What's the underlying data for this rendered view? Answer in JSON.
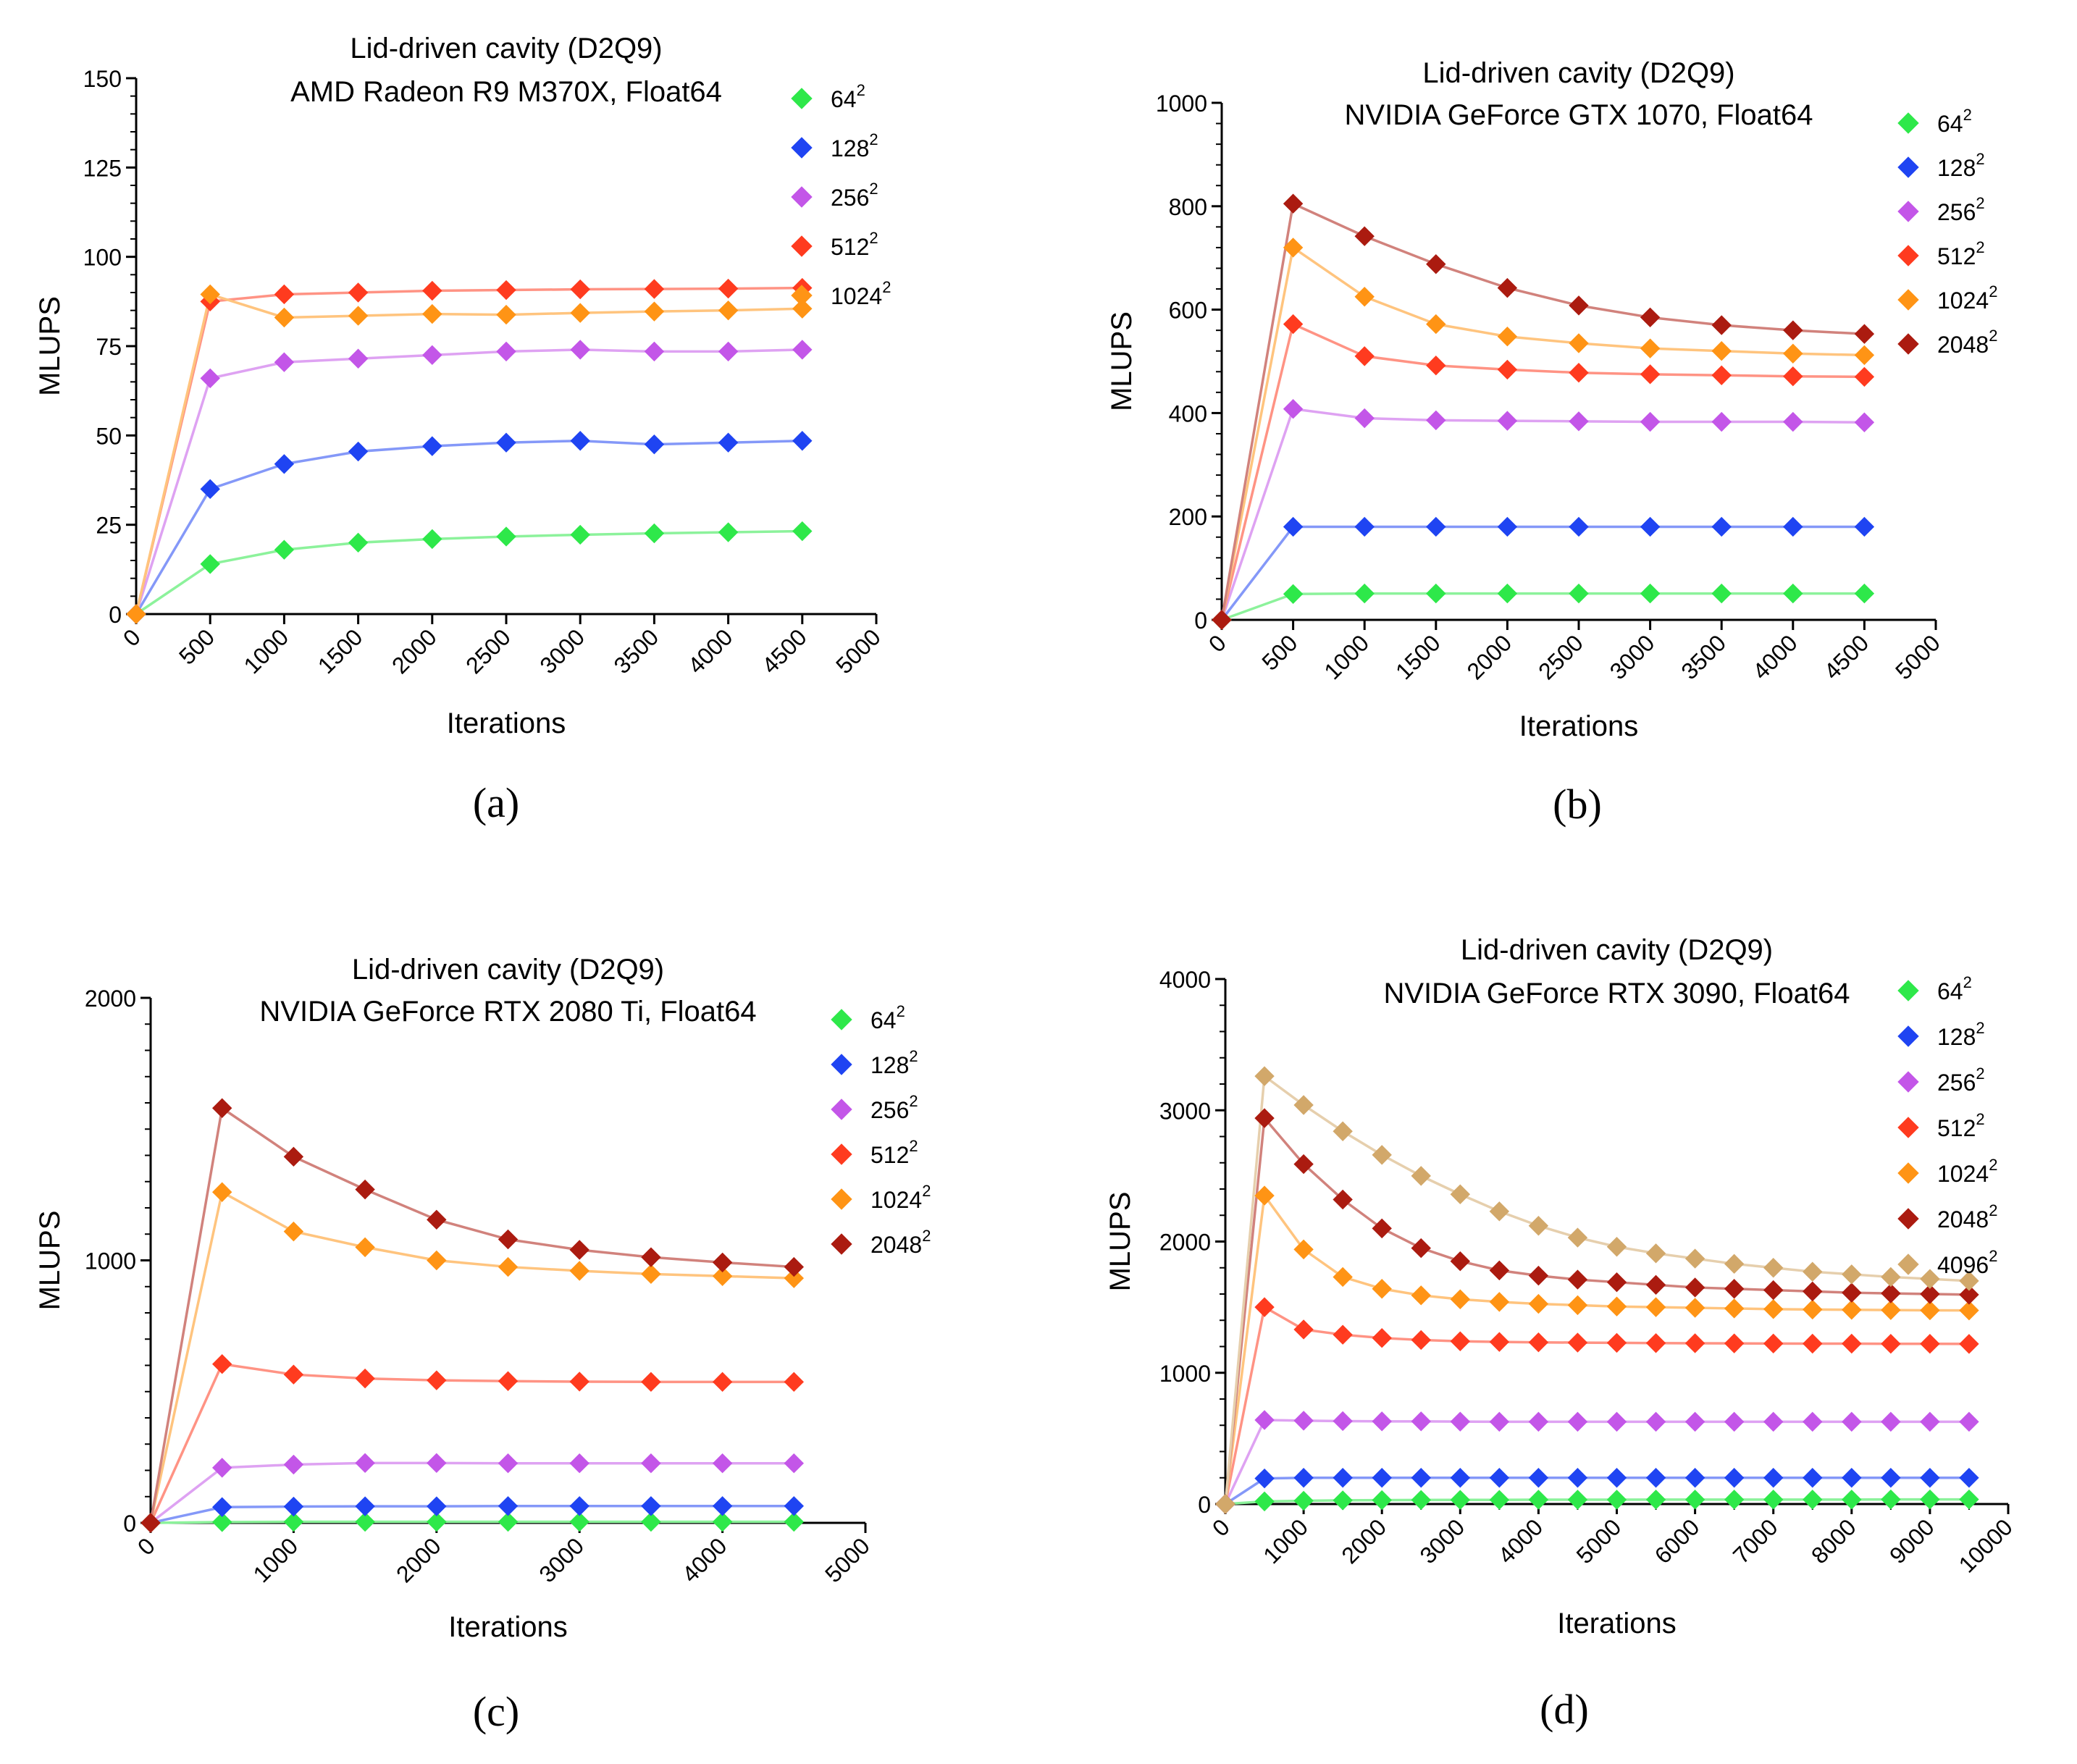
{
  "chart_data": [
    {
      "type": "line",
      "caption": "(a)",
      "title": "Lid-driven cavity (D2Q9)",
      "subtitle": "AMD Radeon R9 M370X, Float64",
      "xlabel": "Iterations",
      "ylabel": "MLUPS",
      "xlim": [
        0,
        5000
      ],
      "ylim": [
        0,
        150
      ],
      "xticks": [
        0,
        500,
        1000,
        1500,
        2000,
        2500,
        3000,
        3500,
        4000,
        4500,
        5000
      ],
      "yticks": [
        0,
        25,
        50,
        75,
        100,
        125,
        150
      ],
      "grid": false,
      "legend_position": "top-right",
      "x": [
        0,
        500,
        1000,
        1500,
        2000,
        2500,
        3000,
        3500,
        4000,
        4500
      ],
      "series": [
        {
          "name": "64",
          "sup": "2",
          "color": "#2ee84a",
          "values": [
            0,
            14,
            18,
            20,
            21,
            21.7,
            22.2,
            22.6,
            22.9,
            23.2
          ]
        },
        {
          "name": "128",
          "sup": "2",
          "color": "#1f44f2",
          "values": [
            0,
            35,
            42,
            45.5,
            47,
            48,
            48.5,
            47.5,
            48,
            48.5
          ]
        },
        {
          "name": "256",
          "sup": "2",
          "color": "#c356e8",
          "values": [
            0,
            66,
            70.5,
            71.5,
            72.5,
            73.5,
            74,
            73.5,
            73.5,
            74
          ]
        },
        {
          "name": "512",
          "sup": "2",
          "color": "#ff3b1f",
          "values": [
            0,
            87.5,
            89.5,
            90,
            90.5,
            90.7,
            90.9,
            91,
            91.1,
            91.3
          ]
        },
        {
          "name": "1024",
          "sup": "2",
          "color": "#ff9415",
          "values": [
            0,
            89.5,
            83,
            83.5,
            84,
            83.8,
            84.3,
            84.7,
            85,
            85.5
          ]
        }
      ]
    },
    {
      "type": "line",
      "caption": "(b)",
      "title": "Lid-driven cavity (D2Q9)",
      "subtitle": "NVIDIA GeForce GTX 1070, Float64",
      "xlabel": "Iterations",
      "ylabel": "MLUPS",
      "xlim": [
        0,
        5000
      ],
      "ylim": [
        0,
        1000
      ],
      "xticks": [
        0,
        500,
        1000,
        1500,
        2000,
        2500,
        3000,
        3500,
        4000,
        4500,
        5000
      ],
      "yticks": [
        0,
        200,
        400,
        600,
        800,
        1000
      ],
      "grid": false,
      "legend_position": "right",
      "x": [
        0,
        500,
        1000,
        1500,
        2000,
        2500,
        3000,
        3500,
        4000,
        4500
      ],
      "series": [
        {
          "name": "64",
          "sup": "2",
          "color": "#2ee84a",
          "values": [
            0,
            50,
            51,
            51,
            51,
            51,
            51,
            51,
            51,
            51
          ]
        },
        {
          "name": "128",
          "sup": "2",
          "color": "#1f44f2",
          "values": [
            0,
            180,
            180,
            180,
            180,
            180,
            180,
            180,
            180,
            180
          ]
        },
        {
          "name": "256",
          "sup": "2",
          "color": "#c356e8",
          "values": [
            0,
            408,
            390,
            386,
            385,
            384,
            383,
            383,
            383,
            382
          ]
        },
        {
          "name": "512",
          "sup": "2",
          "color": "#ff3b1f",
          "values": [
            0,
            572,
            510,
            492,
            484,
            478,
            475,
            473,
            471,
            470
          ]
        },
        {
          "name": "1024",
          "sup": "2",
          "color": "#ff9415",
          "values": [
            0,
            720,
            625,
            572,
            548,
            535,
            525,
            520,
            515,
            512
          ]
        },
        {
          "name": "2048",
          "sup": "2",
          "color": "#ab1b10",
          "values": [
            0,
            805,
            742,
            688,
            642,
            608,
            585,
            570,
            560,
            553
          ]
        }
      ]
    },
    {
      "type": "line",
      "caption": "(c)",
      "title": "Lid-driven cavity (D2Q9)",
      "subtitle": "NVIDIA GeForce RTX 2080 Ti, Float64",
      "xlabel": "Iterations",
      "ylabel": "MLUPS",
      "xlim": [
        0,
        5000
      ],
      "ylim": [
        0,
        2000
      ],
      "xticks": [
        0,
        1000,
        2000,
        3000,
        4000,
        5000
      ],
      "yticks": [
        0,
        1000,
        2000
      ],
      "grid": false,
      "legend_position": "right",
      "x": [
        0,
        500,
        1000,
        1500,
        2000,
        2500,
        3000,
        3500,
        4000,
        4500
      ],
      "series": [
        {
          "name": "64",
          "sup": "2",
          "color": "#2ee84a",
          "values": [
            0,
            3,
            4,
            4,
            4,
            4,
            4,
            4,
            4,
            4
          ]
        },
        {
          "name": "128",
          "sup": "2",
          "color": "#1f44f2",
          "values": [
            0,
            60,
            62,
            63,
            63,
            64,
            64,
            64,
            64,
            64
          ]
        },
        {
          "name": "256",
          "sup": "2",
          "color": "#c356e8",
          "values": [
            0,
            210,
            222,
            228,
            228,
            227,
            227,
            227,
            227,
            227
          ]
        },
        {
          "name": "512",
          "sup": "2",
          "color": "#ff3b1f",
          "values": [
            0,
            605,
            565,
            550,
            543,
            540,
            538,
            537,
            537,
            537
          ]
        },
        {
          "name": "1024",
          "sup": "2",
          "color": "#ff9415",
          "values": [
            0,
            1260,
            1110,
            1050,
            1000,
            975,
            960,
            948,
            940,
            932
          ]
        },
        {
          "name": "2048",
          "sup": "2",
          "color": "#ab1b10",
          "values": [
            0,
            1580,
            1395,
            1270,
            1155,
            1080,
            1040,
            1012,
            992,
            975
          ]
        }
      ]
    },
    {
      "type": "line",
      "caption": "(d)",
      "title": "Lid-driven cavity (D2Q9)",
      "subtitle": "NVIDIA GeForce RTX 3090, Float64",
      "xlabel": "Iterations",
      "ylabel": "MLUPS",
      "xlim": [
        0,
        10000
      ],
      "ylim": [
        0,
        4000
      ],
      "xticks": [
        0,
        1000,
        2000,
        3000,
        4000,
        5000,
        6000,
        7000,
        8000,
        9000,
        10000
      ],
      "yticks": [
        0,
        1000,
        2000,
        3000,
        4000
      ],
      "grid": false,
      "legend_position": "right",
      "x": [
        0,
        500,
        1000,
        1500,
        2000,
        2500,
        3000,
        3500,
        4000,
        4500,
        5000,
        5500,
        6000,
        6500,
        7000,
        7500,
        8000,
        8500,
        9000,
        9500
      ],
      "series": [
        {
          "name": "64",
          "sup": "2",
          "color": "#2ee84a",
          "values": [
            0,
            20,
            25,
            28,
            30,
            31,
            32,
            32,
            33,
            33,
            33,
            34,
            34,
            34,
            34,
            34,
            34,
            35,
            35,
            35
          ]
        },
        {
          "name": "128",
          "sup": "2",
          "color": "#1f44f2",
          "values": [
            0,
            195,
            200,
            200,
            200,
            200,
            200,
            200,
            200,
            200,
            200,
            200,
            200,
            200,
            200,
            200,
            200,
            200,
            200,
            200
          ]
        },
        {
          "name": "256",
          "sup": "2",
          "color": "#c356e8",
          "values": [
            0,
            640,
            635,
            632,
            630,
            630,
            628,
            627,
            627,
            627,
            627,
            627,
            627,
            627,
            627,
            627,
            627,
            627,
            627,
            627
          ]
        },
        {
          "name": "512",
          "sup": "2",
          "color": "#ff3b1f",
          "values": [
            0,
            1500,
            1330,
            1290,
            1265,
            1250,
            1240,
            1235,
            1232,
            1230,
            1228,
            1226,
            1225,
            1224,
            1223,
            1222,
            1222,
            1221,
            1221,
            1220
          ]
        },
        {
          "name": "1024",
          "sup": "2",
          "color": "#ff9415",
          "values": [
            0,
            2350,
            1940,
            1730,
            1640,
            1590,
            1560,
            1540,
            1525,
            1515,
            1505,
            1500,
            1495,
            1490,
            1485,
            1482,
            1480,
            1478,
            1476,
            1475
          ]
        },
        {
          "name": "2048",
          "sup": "2",
          "color": "#ab1b10",
          "values": [
            0,
            2940,
            2590,
            2320,
            2100,
            1950,
            1850,
            1780,
            1740,
            1710,
            1690,
            1670,
            1650,
            1640,
            1630,
            1620,
            1610,
            1605,
            1600,
            1595
          ]
        },
        {
          "name": "4096",
          "sup": "2",
          "color": "#d2a86a",
          "values": [
            0,
            3260,
            3040,
            2840,
            2660,
            2500,
            2360,
            2230,
            2120,
            2030,
            1960,
            1910,
            1870,
            1830,
            1800,
            1770,
            1750,
            1730,
            1715,
            1700
          ]
        }
      ]
    }
  ]
}
